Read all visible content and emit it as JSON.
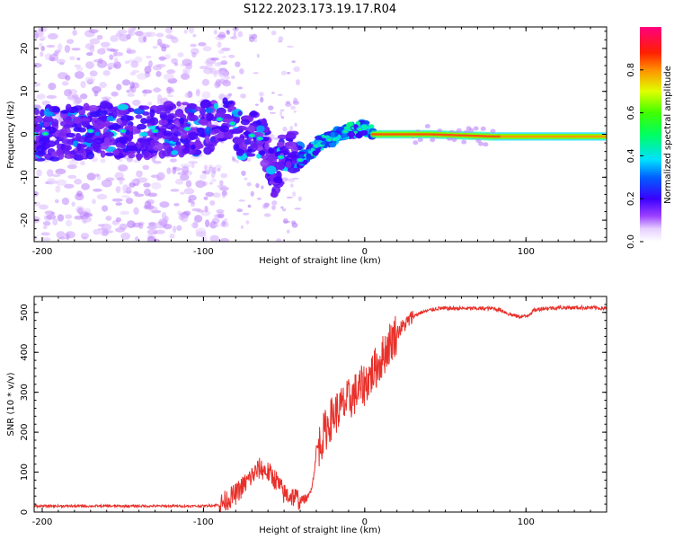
{
  "figure": {
    "title": "S122.2023.173.19.17.R04"
  },
  "colors": {
    "snr_line": "#e8302a",
    "background": "#ffffff",
    "axis": "#000000"
  },
  "chart_data": [
    {
      "type": "heatmap",
      "title": "",
      "xlabel": "Height of straight line (km)",
      "ylabel": "Frequency (Hz)",
      "xlim": [
        -205,
        150
      ],
      "ylim": [
        -25,
        25
      ],
      "x_ticks": [
        -200,
        -100,
        0,
        100
      ],
      "y_ticks": [
        -20,
        -10,
        0,
        10,
        20
      ],
      "colormap": "rainbow",
      "colorbar": {
        "label": "Normalized spectral amplitude",
        "ticks": [
          "0.0",
          "0.2",
          "0.4",
          "0.6",
          "0.8"
        ],
        "range": [
          0,
          1
        ]
      },
      "ridge": [
        {
          "x": -205,
          "y": 0
        },
        {
          "x": -180,
          "y": 0.5
        },
        {
          "x": -160,
          "y": 1
        },
        {
          "x": -140,
          "y": 0.5
        },
        {
          "x": -120,
          "y": 1
        },
        {
          "x": -100,
          "y": 1.5
        },
        {
          "x": -90,
          "y": 3.5
        },
        {
          "x": -82,
          "y": 2.5
        },
        {
          "x": -75,
          "y": -1
        },
        {
          "x": -68,
          "y": 0
        },
        {
          "x": -62,
          "y": -2
        },
        {
          "x": -56,
          "y": -10
        },
        {
          "x": -50,
          "y": -3
        },
        {
          "x": -44,
          "y": -4
        },
        {
          "x": -40,
          "y": -6
        },
        {
          "x": -35,
          "y": -4.5
        },
        {
          "x": -28,
          "y": -2
        },
        {
          "x": -20,
          "y": -1
        },
        {
          "x": -15,
          "y": 0.5
        },
        {
          "x": -5,
          "y": 1
        },
        {
          "x": 0,
          "y": 1.5
        },
        {
          "x": 5,
          "y": 0
        },
        {
          "x": 40,
          "y": 0
        },
        {
          "x": 80,
          "y": -0.5
        },
        {
          "x": 150,
          "y": -0.5
        }
      ]
    },
    {
      "type": "line",
      "title": "",
      "xlabel": "Height of straight line (km)",
      "ylabel": "SNR (10 * v/v)",
      "xlim": [
        -205,
        150
      ],
      "ylim": [
        0,
        540
      ],
      "x_ticks": [
        -200,
        -100,
        0,
        100
      ],
      "y_ticks": [
        0,
        100,
        200,
        300,
        400,
        500
      ],
      "series": [
        {
          "x": [
            -205,
            -150,
            -100,
            -90,
            -80,
            -70,
            -65,
            -60,
            -55,
            -50,
            -45,
            -40,
            -35,
            -32,
            -30,
            -27,
            -25,
            -20,
            -15,
            -10,
            -5,
            0,
            5,
            10,
            15,
            20,
            25,
            30,
            35,
            40,
            45,
            50,
            60,
            70,
            80,
            85,
            90,
            95,
            100,
            105,
            110,
            120,
            130,
            140,
            150
          ],
          "values": [
            15,
            15,
            15,
            18,
            45,
            90,
            110,
            100,
            80,
            45,
            40,
            30,
            35,
            80,
            150,
            180,
            200,
            240,
            260,
            280,
            300,
            320,
            350,
            380,
            420,
            450,
            470,
            490,
            500,
            505,
            510,
            510,
            510,
            510,
            510,
            505,
            495,
            490,
            490,
            505,
            510,
            512,
            512,
            512,
            510
          ]
        }
      ]
    }
  ]
}
